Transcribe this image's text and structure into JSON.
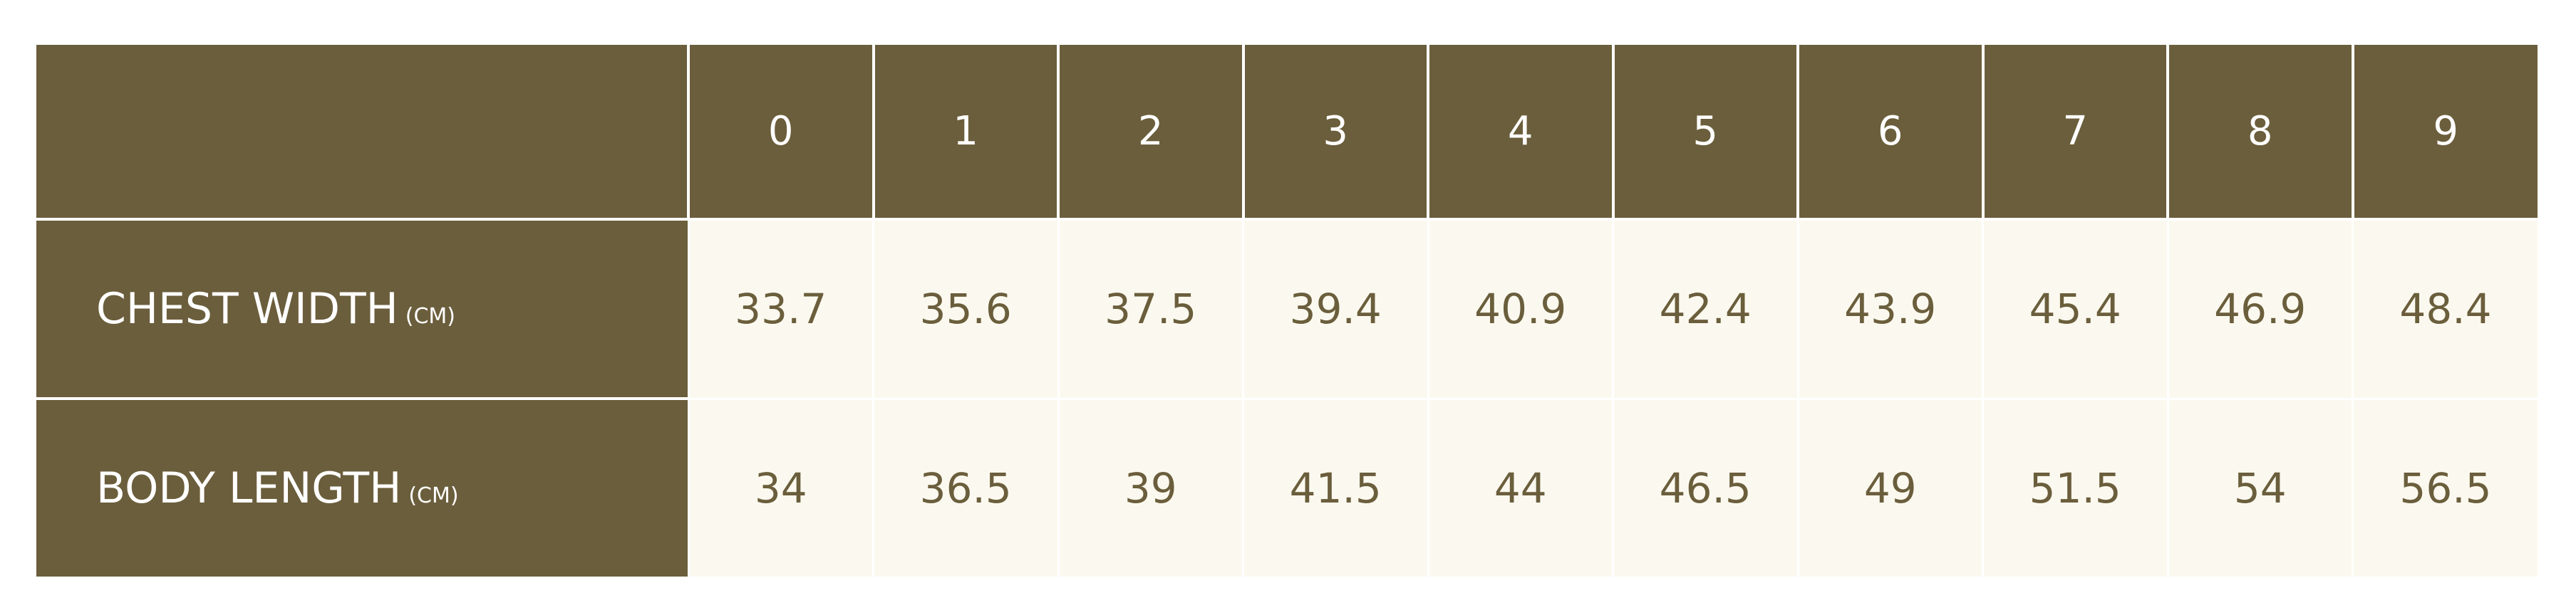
{
  "table": {
    "columns": [
      0,
      1,
      2,
      3,
      4,
      5,
      6,
      7,
      8,
      9
    ],
    "rows": [
      {
        "label": "CHEST WIDTH",
        "unit": "(CM)",
        "values": [
          33.7,
          35.6,
          37.5,
          39.4,
          40.9,
          42.4,
          43.9,
          45.4,
          46.9,
          48.4
        ]
      },
      {
        "label": "BODY LENGTH",
        "unit": "(CM)",
        "values": [
          34,
          36.5,
          39,
          41.5,
          44,
          46.5,
          49,
          51.5,
          54,
          56.5
        ]
      }
    ]
  }
}
